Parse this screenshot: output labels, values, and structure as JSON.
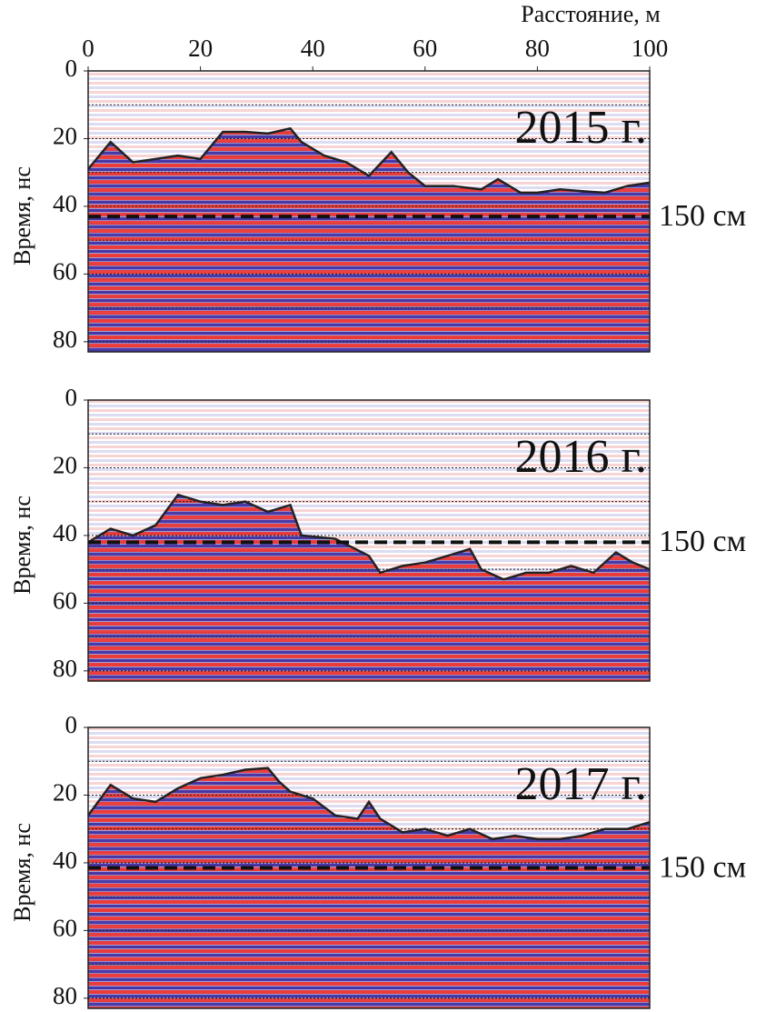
{
  "chart_data": [
    {
      "type": "line",
      "title": "2015 г.",
      "xlabel": "Расстояние, м",
      "ylabel": "Время, нс",
      "xlim": [
        0,
        100
      ],
      "xticks": [
        0,
        20,
        40,
        60,
        80,
        100
      ],
      "ylim": [
        0,
        83
      ],
      "yticks": [
        0,
        20,
        40,
        60,
        80
      ],
      "ygrid": [
        10,
        20,
        30,
        40,
        50,
        60,
        70,
        80
      ],
      "y_inverted": true,
      "color": "#222222",
      "x": [
        0,
        4,
        8,
        12,
        16,
        20,
        24,
        28,
        32,
        36,
        38,
        42,
        46,
        50,
        54,
        57,
        60,
        65,
        70,
        73,
        77,
        80,
        84,
        88,
        92,
        96,
        100
      ],
      "values": [
        29,
        21,
        27,
        26,
        25,
        26,
        18,
        18,
        18.5,
        17,
        21,
        25,
        27,
        31,
        24,
        30,
        34,
        34,
        35,
        32,
        36,
        36,
        35,
        35.5,
        36,
        34,
        33
      ],
      "reference": {
        "value": 43,
        "label": "150 см"
      }
    },
    {
      "type": "line",
      "title": "2016 г.",
      "ylabel": "Время, нс",
      "xlim": [
        0,
        100
      ],
      "ylim": [
        0,
        83
      ],
      "yticks": [
        0,
        20,
        40,
        60,
        80
      ],
      "ygrid": [
        10,
        20,
        30,
        40,
        50,
        60,
        70,
        80
      ],
      "y_inverted": true,
      "color": "#222222",
      "x": [
        0,
        4,
        8,
        12,
        16,
        20,
        24,
        28,
        32,
        36,
        38,
        44,
        50,
        52,
        56,
        60,
        64,
        68,
        70,
        74,
        78,
        82,
        86,
        90,
        94,
        97,
        100
      ],
      "values": [
        42,
        38,
        40,
        37,
        28,
        30,
        31,
        30,
        33,
        31,
        40,
        41,
        46,
        51,
        49,
        48,
        46,
        44,
        50,
        53,
        51,
        51,
        49,
        51,
        45,
        48,
        50
      ],
      "reference": {
        "value": 42,
        "label": "150 см"
      }
    },
    {
      "type": "line",
      "title": "2017 г.",
      "ylabel": "Время, нс",
      "xlim": [
        0,
        100
      ],
      "ylim": [
        0,
        83
      ],
      "yticks": [
        0,
        20,
        40,
        60,
        80
      ],
      "ygrid": [
        10,
        20,
        30,
        40,
        50,
        60,
        70,
        80
      ],
      "y_inverted": true,
      "color": "#222222",
      "x": [
        0,
        4,
        8,
        12,
        16,
        20,
        24,
        28,
        32,
        34,
        36,
        40,
        44,
        48,
        50,
        52,
        56,
        60,
        64,
        68,
        72,
        76,
        80,
        84,
        88,
        92,
        96,
        100
      ],
      "values": [
        26,
        17,
        21,
        22,
        18,
        15,
        14,
        12.5,
        12,
        16,
        19,
        21,
        26,
        27,
        22,
        27,
        31,
        30,
        32,
        30,
        33,
        32,
        33,
        33,
        32,
        30,
        30,
        28
      ],
      "reference": {
        "value": 41.5,
        "label": "150 см"
      }
    }
  ]
}
